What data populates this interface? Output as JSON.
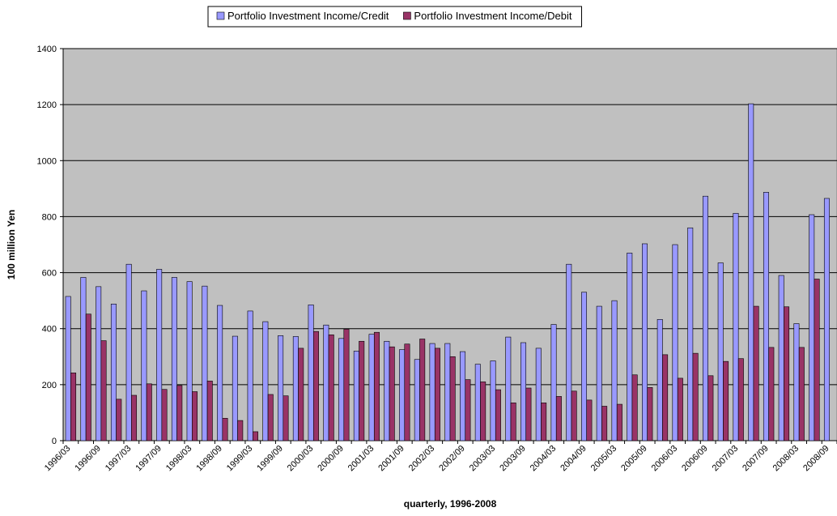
{
  "chart_data": {
    "type": "bar",
    "x_label": "quarterly, 1996-2008",
    "y_label": "100 million Yen",
    "categories": [
      "1996/03",
      null,
      "1996/09",
      null,
      "1997/03",
      null,
      "1997/09",
      null,
      "1998/03",
      null,
      "1998/09",
      null,
      "1999/03",
      null,
      "1999/09",
      null,
      "2000/03",
      null,
      "2000/09",
      null,
      "2001/03",
      null,
      "2001/09",
      null,
      "2002/03",
      null,
      "2002/09",
      null,
      "2003/03",
      null,
      "2003/09",
      null,
      "2004/03",
      null,
      "2004/09",
      null,
      "2005/03",
      null,
      "2005/09",
      null,
      "2006/03",
      null,
      "2006/09",
      null,
      "2007/03",
      null,
      "2007/09",
      null,
      "2008/03",
      null,
      "2008/09"
    ],
    "series": [
      {
        "name": "Portfolio Investment Income/Credit",
        "color": "#9999ff",
        "values": [
          515,
          583,
          550,
          488,
          630,
          535,
          612,
          583,
          568,
          552,
          483,
          373,
          463,
          425,
          375,
          372,
          485,
          413,
          365,
          320,
          380,
          355,
          325,
          290,
          347,
          347,
          318,
          273,
          285,
          370,
          350,
          330,
          415,
          630,
          530,
          480,
          500,
          670,
          703,
          433,
          700,
          760,
          873,
          635,
          812,
          1203,
          887,
          590,
          418,
          807,
          865
        ]
      },
      {
        "name": "Portfolio Investment Income/Debit",
        "color": "#993366",
        "values": [
          242,
          452,
          357,
          148,
          162,
          203,
          183,
          197,
          175,
          213,
          80,
          72,
          32,
          165,
          160,
          330,
          390,
          378,
          398,
          355,
          387,
          335,
          345,
          363,
          330,
          300,
          218,
          210,
          182,
          135,
          188,
          135,
          158,
          177,
          145,
          123,
          130,
          235,
          190,
          307,
          223,
          312,
          232,
          283,
          293,
          480,
          333,
          478,
          333,
          577,
          null
        ]
      }
    ],
    "ylim": [
      0,
      1400
    ],
    "yticks": [
      0,
      200,
      400,
      600,
      800,
      1000,
      1200,
      1400
    ],
    "grid": true,
    "legend": "top",
    "plot_background": "#c0c0c0"
  }
}
